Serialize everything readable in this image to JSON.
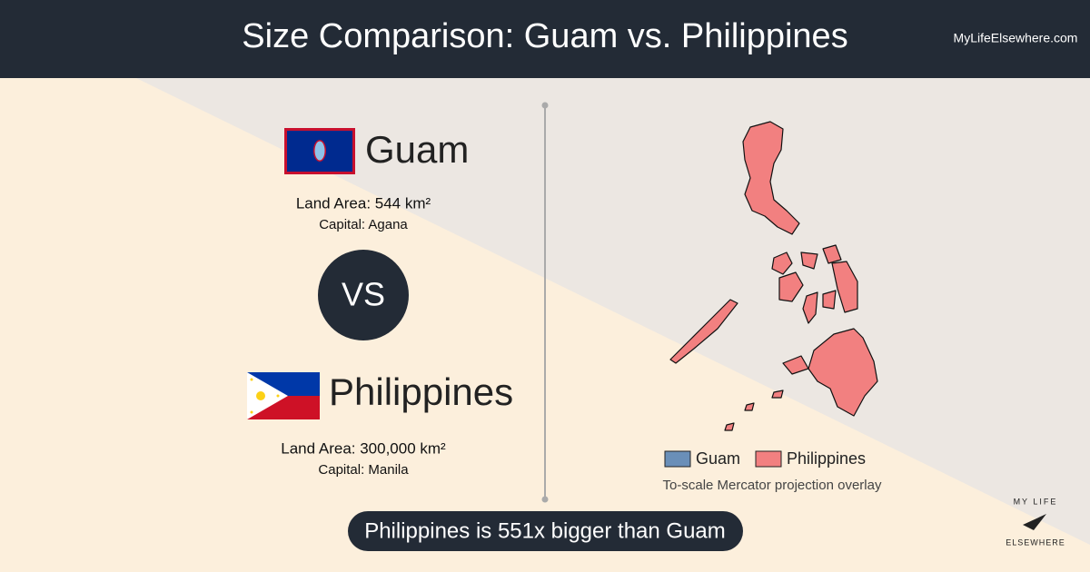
{
  "header": {
    "title": "Size Comparison: Guam vs. Philippines",
    "site": "MyLifeElsewhere.com"
  },
  "left": {
    "country_a": {
      "name": "Guam",
      "land_area": "Land Area: 544 km²",
      "capital": "Capital: Agana"
    },
    "vs": "VS",
    "country_b": {
      "name": "Philippines",
      "land_area": "Land Area: 300,000 km²",
      "capital": "Capital: Manila"
    }
  },
  "map": {
    "legend": [
      "Guam",
      "Philippines"
    ],
    "caption": "To-scale Mercator projection overlay"
  },
  "footer": {
    "summary": "Philippines is 551x bigger than Guam",
    "logo": [
      "MY LIFE",
      "ELSEWHERE"
    ]
  }
}
